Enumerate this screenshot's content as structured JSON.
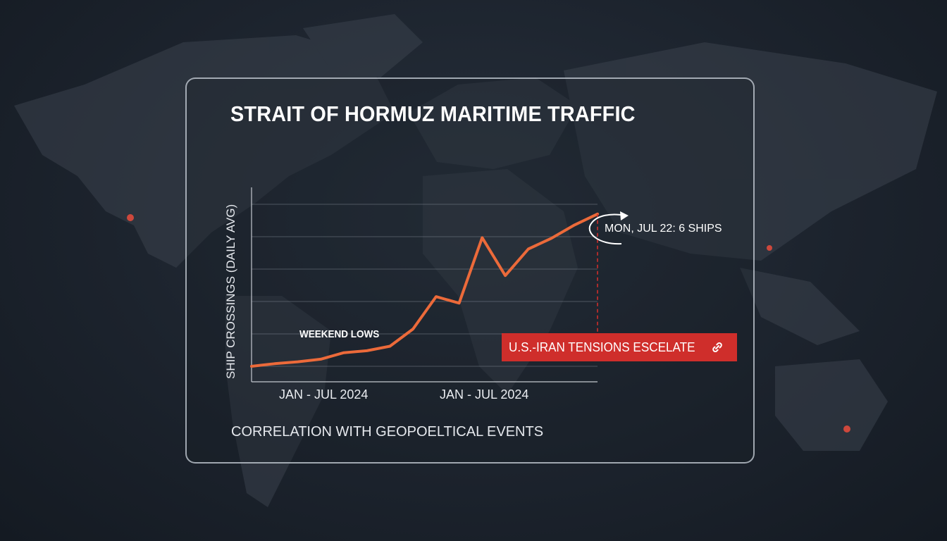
{
  "title": "STRAIT OF HORMUZ MARITIME TRAFFIC",
  "subtitle": "CORRELATION WITH GEOPOELTICAL EVENTS",
  "event_badge": "U.S.-IRAN TENSIONS ESCELATE",
  "icons": {
    "event_badge": "link-icon",
    "latest_callout": "curved-arrow-icon"
  },
  "colors": {
    "line": "#ec6a3a",
    "event": "#cf2e2b",
    "marker": "#e04a3c"
  },
  "chart_data": {
    "type": "line",
    "title": "STRAIT OF HORMUZ MARITIME TRAFFIC",
    "ylabel": "SHIP CROSSINGS (DAILY AVG)",
    "xlabel": "",
    "x_tick_labels": [
      "JAN - JUL 2024",
      "JAN - JUL 2024"
    ],
    "y_tick_labels": [],
    "grid": true,
    "ylim": [
      0,
      5
    ],
    "series": [
      {
        "values": [
          0.0,
          0.08,
          0.14,
          0.22,
          0.42,
          0.48,
          0.62,
          1.15,
          2.15,
          1.95,
          3.97,
          2.8,
          3.62,
          3.95,
          4.36,
          4.7
        ]
      }
    ],
    "annotations": [
      {
        "text": "WEEKEND LOWS"
      },
      {
        "text": "MON, JUL 22: 6 SHIPS"
      },
      {
        "text": "U.S.-IRAN TENSIONS ESCELATE"
      }
    ]
  }
}
